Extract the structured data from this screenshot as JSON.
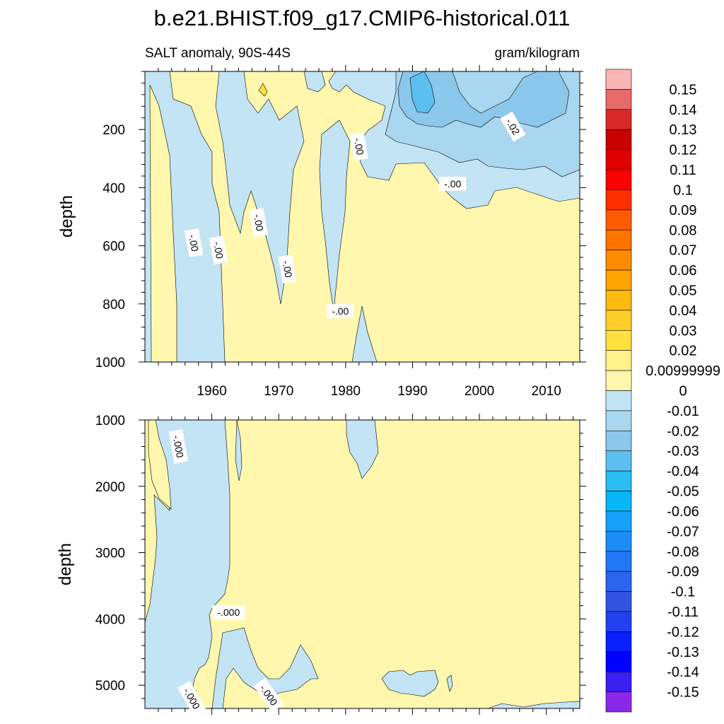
{
  "chart_data": {
    "type": "heatmap",
    "title": "b.e21.BHIST.f09_g17.CMIP6-historical.011",
    "left_string": "SALT anomaly, 90S-44S",
    "right_string": "gram/kilogram",
    "ylabel": "depth",
    "x_range": [
      1950,
      2015
    ],
    "x_ticks": [
      "1960",
      "1970",
      "1980",
      "1990",
      "2000",
      "2010"
    ],
    "panels": [
      {
        "name": "upper",
        "ylim": [
          0,
          1000
        ],
        "y_ticks": [
          "200",
          "400",
          "600",
          "800",
          "1000"
        ],
        "contour_labels": [
          {
            "text": "-.00",
            "x": 1957.3,
            "y": 590,
            "rotate": 80
          },
          {
            "text": "-.00",
            "x": 1961.0,
            "y": 615,
            "rotate": 80
          },
          {
            "text": "-.00",
            "x": 1967.0,
            "y": 520,
            "rotate": 80
          },
          {
            "text": "-.00",
            "x": 1971.3,
            "y": 680,
            "rotate": 80
          },
          {
            "text": "-.00",
            "x": 1979.2,
            "y": 825,
            "rotate": 0
          },
          {
            "text": "-.00",
            "x": 1982.0,
            "y": 258,
            "rotate": 80
          },
          {
            "text": "-.00",
            "x": 1996.0,
            "y": 387,
            "rotate": 0
          },
          {
            "text": "-.02",
            "x": 2005.0,
            "y": 190,
            "rotate": 60
          }
        ]
      },
      {
        "name": "lower",
        "ylim": [
          1000,
          5350
        ],
        "y_ticks": [
          "1000",
          "2000",
          "3000",
          "4000",
          "5000"
        ],
        "contour_labels": [
          {
            "text": "-.000",
            "x": 1955.0,
            "y": 1400,
            "rotate": 80
          },
          {
            "text": "-.000",
            "x": 1962.5,
            "y": 3900,
            "rotate": 0
          },
          {
            "text": "-.000",
            "x": 1957.0,
            "y": 5200,
            "rotate": 60
          },
          {
            "text": "-.000",
            "x": 1968.5,
            "y": 5150,
            "rotate": 55
          }
        ]
      }
    ],
    "colorbar": {
      "labels": [
        "0.15",
        "0.14",
        "0.13",
        "0.12",
        "0.11",
        "0.1",
        "0.09",
        "0.08",
        "0.07",
        "0.06",
        "0.05",
        "0.04",
        "0.03",
        "0.02",
        "0.00999999",
        "0",
        "-0.01",
        "-0.02",
        "-0.03",
        "-0.04",
        "-0.05",
        "-0.06",
        "-0.07",
        "-0.08",
        "-0.09",
        "-0.1",
        "-0.11",
        "-0.12",
        "-0.13",
        "-0.14",
        "-0.15"
      ],
      "colors": [
        "#fbb4b4",
        "#e86a6a",
        "#d82828",
        "#c80000",
        "#e00000",
        "#ff0000",
        "#ff2f00",
        "#ff5a00",
        "#ff7300",
        "#ff8c00",
        "#ffa500",
        "#ffba10",
        "#ffcd28",
        "#ffe040",
        "#fff28a",
        "#fff7ad",
        "#c3e4f4",
        "#a9d7ef",
        "#8cc7ec",
        "#5bc0f0",
        "#2cbdf5",
        "#05b7f7",
        "#14a1f7",
        "#1e8cf7",
        "#2277f5",
        "#2b64ee",
        "#3352e2",
        "#2340f0",
        "#0a20ff",
        "#0000ff",
        "#3a1ef2",
        "#8a28e8"
      ]
    },
    "fill_colors": {
      "positive": "#fff7ad",
      "zero_to_minus001": "#c3e4f4",
      "minus001_to_minus002": "#a9d7ef",
      "minus002_to_minus003": "#8cc7ec",
      "minus003_to_minus004": "#5bc0f0",
      "light_positive": "#ffe040"
    }
  }
}
